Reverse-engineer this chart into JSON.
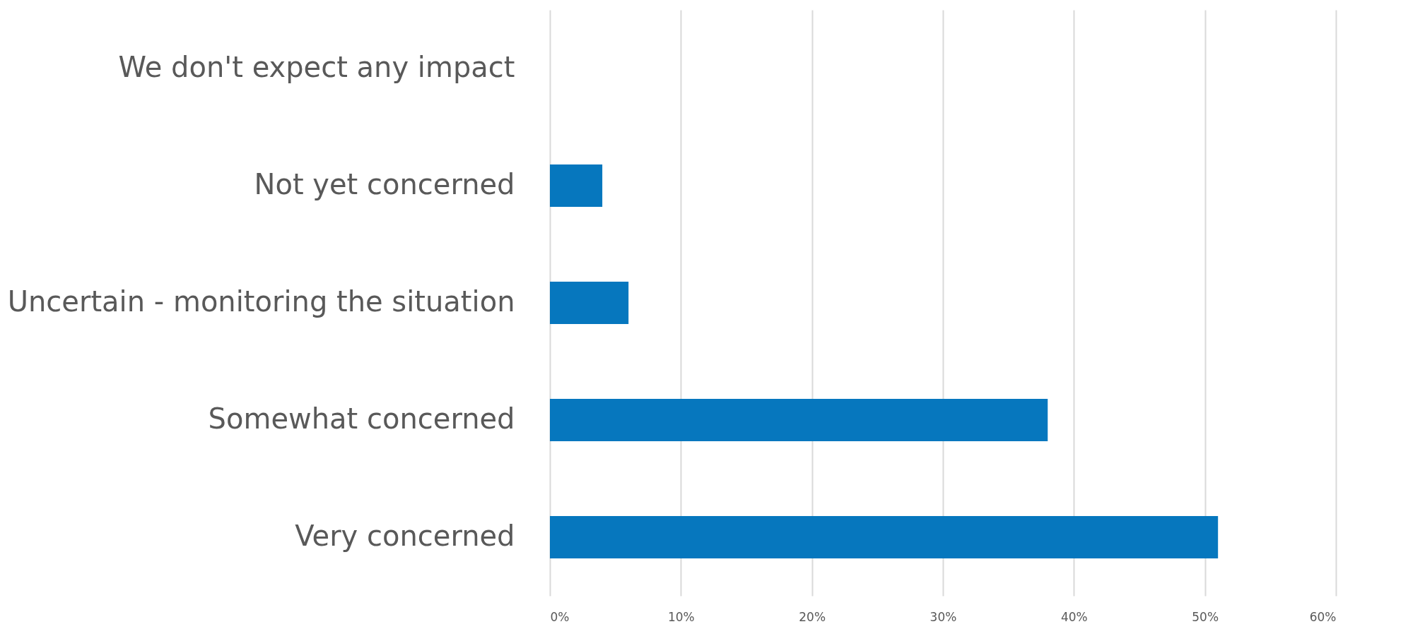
{
  "chart_data": {
    "type": "bar",
    "orientation": "horizontal",
    "categories": [
      "We don't expect any impact",
      "Not yet concerned",
      "Uncertain - monitoring the situation",
      "Somewhat concerned",
      "Very concerned"
    ],
    "values": [
      0,
      4,
      6,
      38,
      51
    ],
    "color": "#0677be",
    "xlim": [
      0,
      60
    ],
    "xticks": [
      {
        "value": 0,
        "label": "0%"
      },
      {
        "value": 10,
        "label": "10%"
      },
      {
        "value": 20,
        "label": "20%"
      },
      {
        "value": 30,
        "label": "30%"
      },
      {
        "value": 40,
        "label": "40%"
      },
      {
        "value": 50,
        "label": "50%"
      },
      {
        "value": 60,
        "label": "60%"
      }
    ],
    "grid": "x"
  }
}
